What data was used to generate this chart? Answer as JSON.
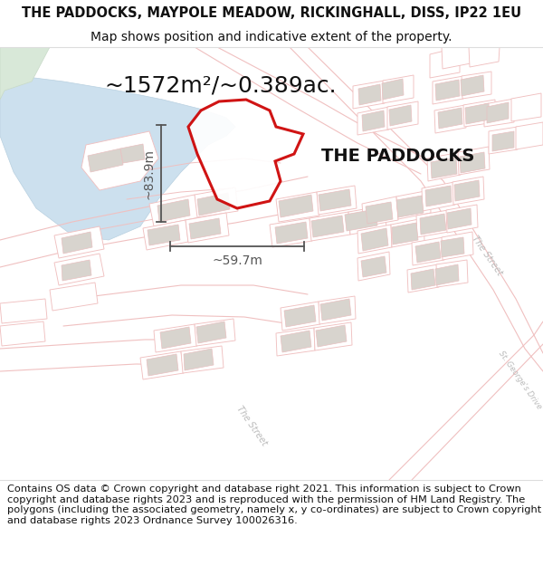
{
  "title_line1": "THE PADDOCKS, MAYPOLE MEADOW, RICKINGHALL, DISS, IP22 1EU",
  "title_line2": "Map shows position and indicative extent of the property.",
  "area_text": "~1572m²/~0.389ac.",
  "label_text": "THE PADDOCKS",
  "dim_h": "~59.7m",
  "dim_v": "~83.9m",
  "footer_text": "Contains OS data © Crown copyright and database right 2021. This information is subject to Crown copyright and database rights 2023 and is reproduced with the permission of HM Land Registry. The polygons (including the associated geometry, namely x, y co-ordinates) are subject to Crown copyright and database rights 2023 Ordnance Survey 100026316.",
  "bg_white": "#ffffff",
  "map_bg": "#ffffff",
  "building_fill": "#d8d4ce",
  "building_stroke": "#e8c0c0",
  "outline_stroke": "#f0c0c0",
  "water_fill": "#cce0ee",
  "water_stroke": "#b8d0e0",
  "green_fill": "#d8e8d8",
  "green_stroke": "#c8dac8",
  "property_fill": "#ffffff",
  "property_stroke": "#cc0000",
  "property_lw": 2.2,
  "dim_color": "#555555",
  "road_label_color": "#bbbbbb",
  "text_color": "#111111",
  "title_fs": 10.5,
  "subtitle_fs": 10.0,
  "area_fs": 18,
  "label_fs": 14,
  "dim_fs": 10,
  "footer_fs": 8.2
}
